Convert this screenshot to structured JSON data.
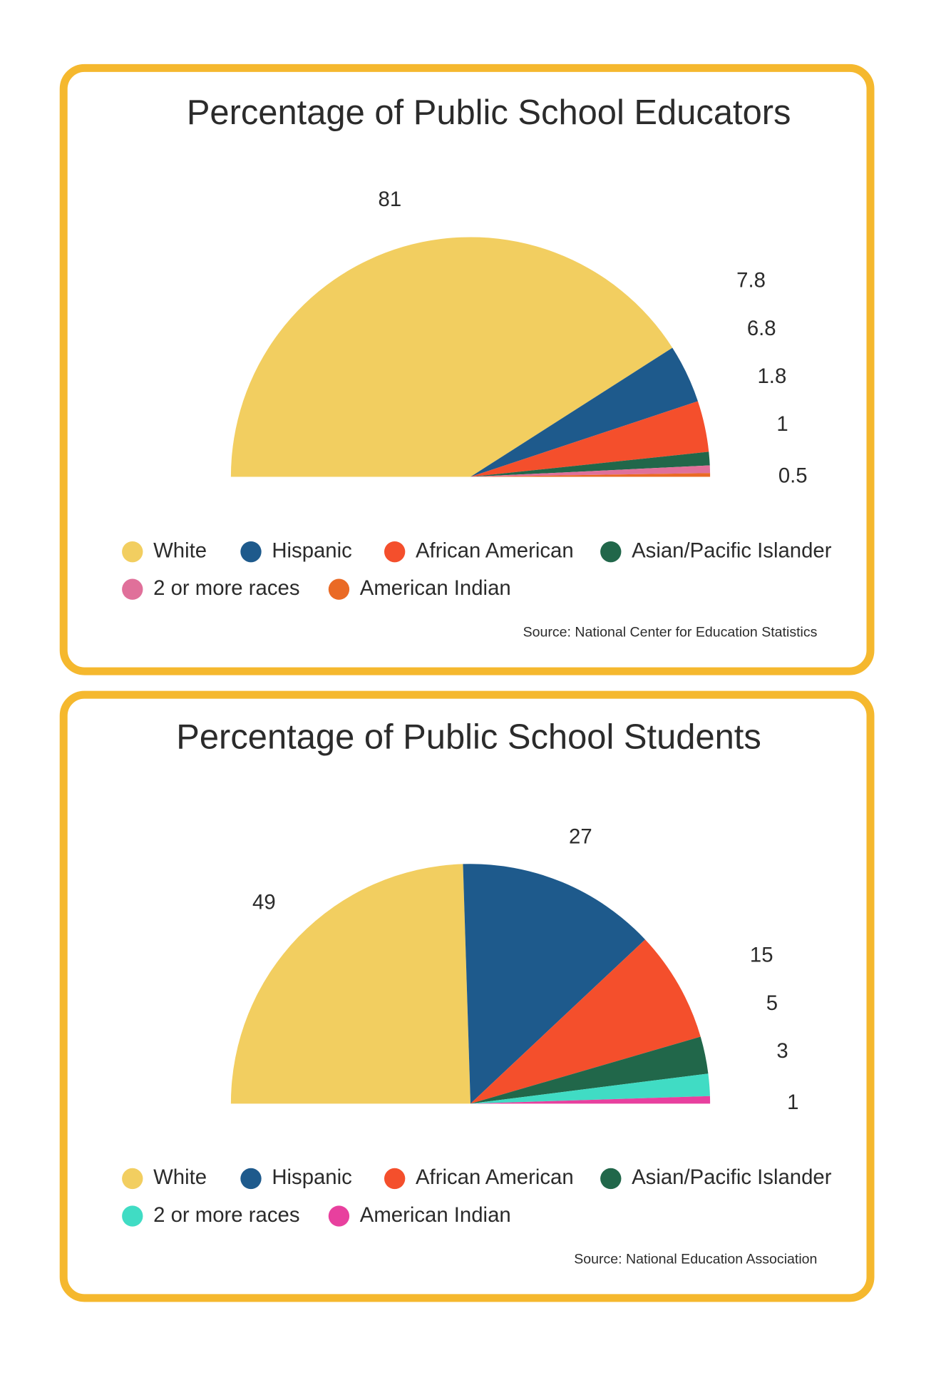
{
  "chart_data": [
    {
      "type": "pie",
      "title": "Percentage of Public School Educators",
      "categories": [
        "White",
        "Hispanic",
        "African American",
        "Asian/Pacific Islander",
        "2 or more races",
        "American Indian"
      ],
      "values": [
        81,
        7.8,
        6.8,
        1.8,
        1,
        0.5
      ],
      "colors": [
        "#f2ce60",
        "#1e5a8c",
        "#f44f2c",
        "#21674a",
        "#e0709a",
        "#ea6a25"
      ],
      "source": "Source: National Center for Education Statistics"
    },
    {
      "type": "pie",
      "title": "Percentage of Public School Students",
      "categories": [
        "White",
        "Hispanic",
        "African American",
        "Asian/Pacific Islander",
        "2 or more races",
        "American Indian"
      ],
      "values": [
        49,
        27,
        15,
        5,
        3,
        1
      ],
      "colors": [
        "#f2ce60",
        "#1e5a8c",
        "#f44f2c",
        "#21674a",
        "#40dcc4",
        "#e8409e"
      ],
      "source": "Source: National Education Association"
    }
  ]
}
